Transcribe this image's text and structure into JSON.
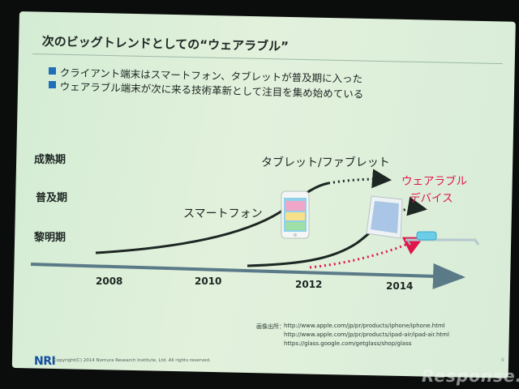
{
  "slide": {
    "title": "次のビッグトレンドとしての“ウェアラブル”",
    "bullets": [
      "クライアント端末はスマートフォン、タブレットが普及期に入った",
      "ウェアラブル端末が次に来る技術革新として注目を集め始めている"
    ],
    "stages": [
      "成熟期",
      "普及期",
      "黎明期"
    ],
    "curves": {
      "smartphone": "スマートフォン",
      "tablet": "タブレット/ファブレット",
      "wearable_line1": "ウェアラブル",
      "wearable_line2": "デバイス"
    },
    "years": [
      "2008",
      "2010",
      "2012",
      "2014"
    ],
    "credits": {
      "label": "画像出所：",
      "urls": [
        "http://www.apple.com/jp/pr/products/iphone/iphone.html",
        "http://www.apple.com/jp/pr/products/ipad-air/ipad-air.html",
        "https://glass.google.com/getglass/shop/glass"
      ]
    },
    "logo": "NRI",
    "copyright": "Copyright(C) 2014 Nomura Research Institute, Ltd. All rights reserved.",
    "page_number": "9"
  },
  "watermark": "Response.",
  "colors": {
    "slide_bg": "#dcefd8",
    "text": "#1c2622",
    "accent_blue": "#1f6fb8",
    "wearable_red": "#e0154a",
    "axis": "#5b7a88"
  },
  "icons": [
    "smartphone-image",
    "tablet-image",
    "smart-glasses-image"
  ]
}
